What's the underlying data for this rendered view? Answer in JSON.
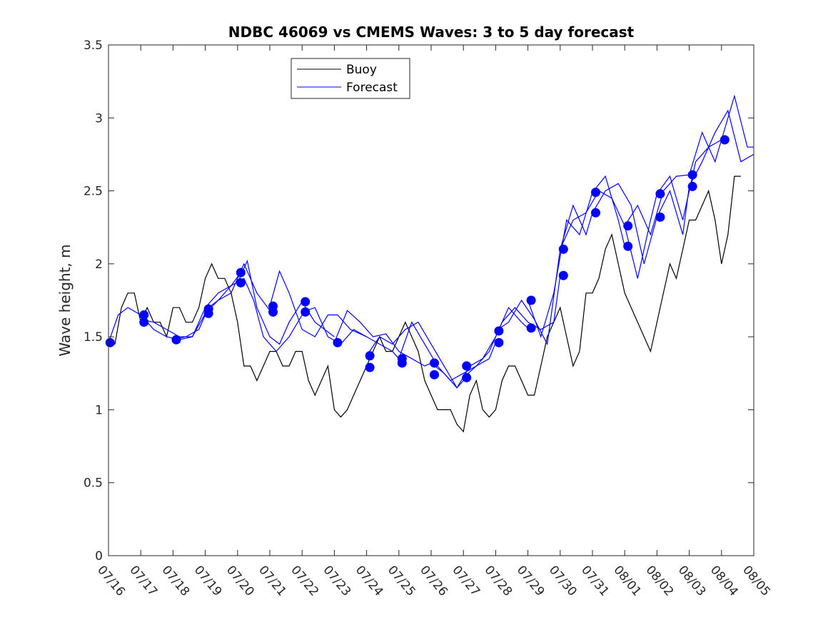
{
  "chart_data": {
    "type": "line",
    "title": "NDBC 46069 vs CMEMS Waves: 3 to 5 day forecast",
    "xlabel": "",
    "ylabel": "Wave height, m",
    "x_type": "date",
    "xlim": [
      "07/16",
      "08/05"
    ],
    "ylim": [
      0,
      3.5
    ],
    "yticks": [
      0,
      0.5,
      1,
      1.5,
      2,
      2.5,
      3,
      3.5
    ],
    "ytick_labels": [
      "0",
      "0.5",
      "1",
      "1.5",
      "2",
      "2.5",
      "3",
      "3.5"
    ],
    "xtick_labels": [
      "07/16",
      "07/17",
      "07/18",
      "07/19",
      "07/20",
      "07/21",
      "07/22",
      "07/23",
      "07/24",
      "07/25",
      "07/26",
      "07/27",
      "07/28",
      "07/29",
      "07/30",
      "07/31",
      "08/01",
      "08/02",
      "08/03",
      "08/04",
      "08/05"
    ],
    "grid": false,
    "legend_position": "top-left",
    "colors": {
      "buoy": "#000000",
      "forecast": "#0000ff",
      "markers": "#0000ff"
    },
    "buoy": {
      "name": "Buoy",
      "x": [
        0,
        0.2,
        0.4,
        0.6,
        0.8,
        1.0,
        1.2,
        1.4,
        1.6,
        1.8,
        2.0,
        2.2,
        2.4,
        2.6,
        2.8,
        3.0,
        3.2,
        3.4,
        3.6,
        3.8,
        4.0,
        4.2,
        4.4,
        4.6,
        4.8,
        5.0,
        5.2,
        5.4,
        5.6,
        5.8,
        6.0,
        6.2,
        6.4,
        6.6,
        6.8,
        7.0,
        7.2,
        7.4,
        7.6,
        7.8,
        8.0,
        8.2,
        8.4,
        8.6,
        8.8,
        9.0,
        9.2,
        9.4,
        9.6,
        9.8,
        10.0,
        10.2,
        10.4,
        10.6,
        10.8,
        11.0,
        11.2,
        11.4,
        11.6,
        11.8,
        12.0,
        12.2,
        12.4,
        12.6,
        12.8,
        13.0,
        13.2,
        13.4,
        13.6,
        13.8,
        14.0,
        14.2,
        14.4,
        14.6,
        14.8,
        15.0,
        15.2,
        15.4,
        15.6,
        15.8,
        16.0,
        16.2,
        16.4,
        16.6,
        16.8,
        17.0,
        17.2,
        17.4,
        17.6,
        17.8,
        18.0,
        18.2,
        18.4,
        18.6,
        18.8,
        19.0,
        19.2,
        19.4,
        19.6
      ],
      "y": [
        1.45,
        1.45,
        1.7,
        1.8,
        1.8,
        1.6,
        1.7,
        1.6,
        1.6,
        1.5,
        1.7,
        1.7,
        1.6,
        1.6,
        1.7,
        1.9,
        2.0,
        1.9,
        1.9,
        1.8,
        1.6,
        1.3,
        1.3,
        1.2,
        1.3,
        1.4,
        1.4,
        1.3,
        1.3,
        1.4,
        1.4,
        1.2,
        1.1,
        1.2,
        1.3,
        1.0,
        0.95,
        1.0,
        1.1,
        1.2,
        1.3,
        1.4,
        1.5,
        1.4,
        1.4,
        1.5,
        1.6,
        1.5,
        1.4,
        1.2,
        1.1,
        1.0,
        1.0,
        1.0,
        0.9,
        0.85,
        1.1,
        1.2,
        1.0,
        0.95,
        1.0,
        1.2,
        1.3,
        1.3,
        1.2,
        1.1,
        1.1,
        1.3,
        1.5,
        1.6,
        1.7,
        1.5,
        1.3,
        1.4,
        1.8,
        1.8,
        1.9,
        2.1,
        2.2,
        2.0,
        1.8,
        1.7,
        1.6,
        1.5,
        1.4,
        1.6,
        1.8,
        2.0,
        1.9,
        2.1,
        2.3,
        2.3,
        2.4,
        2.5,
        2.3,
        2.0,
        2.2,
        2.6,
        2.6
      ]
    },
    "series": [
      {
        "name": "Forecast",
        "segments": [
          {
            "x": [
              0,
              0.3,
              0.6,
              1.0,
              1.4,
              1.8,
              2.2,
              2.6,
              3.0
            ],
            "y": [
              1.46,
              1.65,
              1.7,
              1.65,
              1.55,
              1.5,
              1.48,
              1.5,
              1.66
            ]
          },
          {
            "x": [
              1.0,
              1.4,
              1.8,
              2.2,
              2.6,
              3.0,
              3.4,
              3.8,
              4.1
            ],
            "y": [
              1.62,
              1.6,
              1.55,
              1.5,
              1.5,
              1.7,
              1.8,
              1.85,
              1.94
            ]
          },
          {
            "x": [
              2.0,
              2.4,
              2.8,
              3.1,
              3.4,
              3.8,
              4.2,
              4.6,
              5.0
            ],
            "y": [
              1.48,
              1.5,
              1.55,
              1.7,
              1.75,
              1.8,
              2.0,
              1.8,
              1.68
            ]
          },
          {
            "x": [
              3.0,
              3.4,
              3.8,
              4.2,
              4.5,
              4.8,
              5.2,
              5.6,
              6.0
            ],
            "y": [
              1.66,
              1.75,
              1.85,
              1.9,
              1.75,
              1.5,
              1.4,
              1.5,
              1.65
            ]
          },
          {
            "x": [
              4.0,
              4.3,
              4.6,
              5.0,
              5.3,
              5.6,
              6.0,
              6.4,
              7.0
            ],
            "y": [
              1.87,
              2.02,
              1.7,
              1.5,
              1.45,
              1.6,
              1.74,
              1.6,
              1.5
            ]
          },
          {
            "x": [
              5.0,
              5.3,
              5.6,
              6.0,
              6.4,
              6.8,
              7.1,
              7.5,
              8.0
            ],
            "y": [
              1.71,
              1.95,
              1.8,
              1.55,
              1.5,
              1.65,
              1.65,
              1.55,
              1.5
            ]
          },
          {
            "x": [
              6.0,
              6.4,
              6.8,
              7.2,
              7.6,
              8.0,
              8.4,
              8.8,
              9.0
            ],
            "y": [
              1.67,
              1.7,
              1.5,
              1.45,
              1.55,
              1.5,
              1.45,
              1.4,
              1.35
            ]
          },
          {
            "x": [
              7.0,
              7.4,
              7.8,
              8.2,
              8.6,
              9.0,
              9.4,
              9.8,
              10.0
            ],
            "y": [
              1.46,
              1.68,
              1.6,
              1.5,
              1.52,
              1.4,
              1.35,
              1.3,
              1.32
            ]
          },
          {
            "x": [
              8.0,
              8.4,
              8.8,
              9.2,
              9.6,
              10.0,
              10.4,
              10.8,
              11.0
            ],
            "y": [
              1.37,
              1.5,
              1.45,
              1.55,
              1.6,
              1.45,
              1.3,
              1.15,
              1.2
            ]
          },
          {
            "x": [
              9.0,
              9.4,
              9.8,
              10.2,
              10.6,
              11.0,
              11.4,
              11.8,
              12.0
            ],
            "y": [
              1.35,
              1.6,
              1.45,
              1.3,
              1.2,
              1.25,
              1.3,
              1.35,
              1.46
            ]
          },
          {
            "x": [
              10.0,
              10.4,
              10.8,
              11.2,
              11.6,
              12.0,
              12.4,
              12.8,
              13.0
            ],
            "y": [
              1.32,
              1.25,
              1.15,
              1.3,
              1.35,
              1.5,
              1.7,
              1.6,
              1.56
            ]
          },
          {
            "x": [
              11.0,
              11.4,
              11.8,
              12.2,
              12.6,
              13.0,
              13.4,
              13.8,
              14.0
            ],
            "y": [
              1.22,
              1.3,
              1.4,
              1.6,
              1.7,
              1.6,
              1.55,
              1.6,
              1.92
            ]
          },
          {
            "x": [
              12.0,
              12.4,
              12.8,
              13.2,
              13.6,
              14.0,
              14.4,
              14.8,
              15.0
            ],
            "y": [
              1.54,
              1.6,
              1.75,
              1.62,
              1.45,
              2.1,
              2.4,
              2.2,
              2.35
            ]
          },
          {
            "x": [
              13.0,
              13.4,
              13.8,
              14.2,
              14.6,
              15.0,
              15.4,
              15.8,
              16.0
            ],
            "y": [
              1.75,
              1.5,
              1.8,
              2.3,
              2.2,
              2.49,
              2.6,
              2.3,
              2.12
            ]
          },
          {
            "x": [
              14.0,
              14.4,
              14.8,
              15.2,
              15.6,
              16.0,
              16.4,
              16.8,
              17.0
            ],
            "y": [
              2.1,
              2.3,
              2.35,
              2.5,
              2.45,
              2.26,
              1.9,
              2.3,
              2.48
            ]
          },
          {
            "x": [
              15.0,
              15.4,
              15.8,
              16.2,
              16.6,
              17.0,
              17.4,
              17.8,
              18.0
            ],
            "y": [
              2.35,
              2.5,
              2.55,
              2.4,
              2.0,
              2.32,
              2.5,
              2.2,
              2.53
            ]
          },
          {
            "x": [
              16.0,
              16.4,
              16.8,
              17.2,
              17.6,
              18.0,
              18.4,
              18.8,
              19.0
            ],
            "y": [
              2.26,
              2.4,
              2.2,
              2.5,
              2.6,
              2.61,
              2.9,
              2.7,
              2.85
            ]
          },
          {
            "x": [
              17.0,
              17.4,
              17.8,
              18.2,
              18.6,
              19.0,
              19.4,
              19.8,
              20.0
            ],
            "y": [
              2.48,
              2.6,
              2.3,
              2.7,
              2.8,
              2.85,
              3.15,
              2.8,
              2.8
            ]
          },
          {
            "x": [
              18.0,
              18.4,
              18.8,
              19.2,
              19.6,
              20.0
            ],
            "y": [
              2.53,
              2.7,
              2.9,
              3.05,
              2.7,
              2.75
            ]
          }
        ]
      }
    ],
    "markers": {
      "x": [
        0.05,
        1.1,
        1.1,
        2.1,
        3.1,
        3.1,
        4.1,
        4.1,
        5.1,
        5.1,
        6.1,
        6.1,
        7.1,
        8.1,
        8.1,
        9.1,
        9.1,
        10.1,
        10.1,
        11.1,
        11.1,
        12.1,
        12.1,
        13.1,
        13.1,
        14.1,
        14.1,
        15.1,
        15.1,
        16.1,
        16.1,
        17.1,
        17.1,
        18.1,
        18.1,
        19.1
      ],
      "y": [
        1.46,
        1.65,
        1.6,
        1.48,
        1.69,
        1.66,
        1.94,
        1.87,
        1.71,
        1.67,
        1.74,
        1.67,
        1.46,
        1.37,
        1.29,
        1.35,
        1.32,
        1.32,
        1.24,
        1.3,
        1.22,
        1.54,
        1.46,
        1.75,
        1.56,
        2.1,
        1.92,
        2.49,
        2.35,
        2.26,
        2.12,
        2.48,
        2.32,
        2.61,
        2.53,
        2.85
      ]
    }
  }
}
